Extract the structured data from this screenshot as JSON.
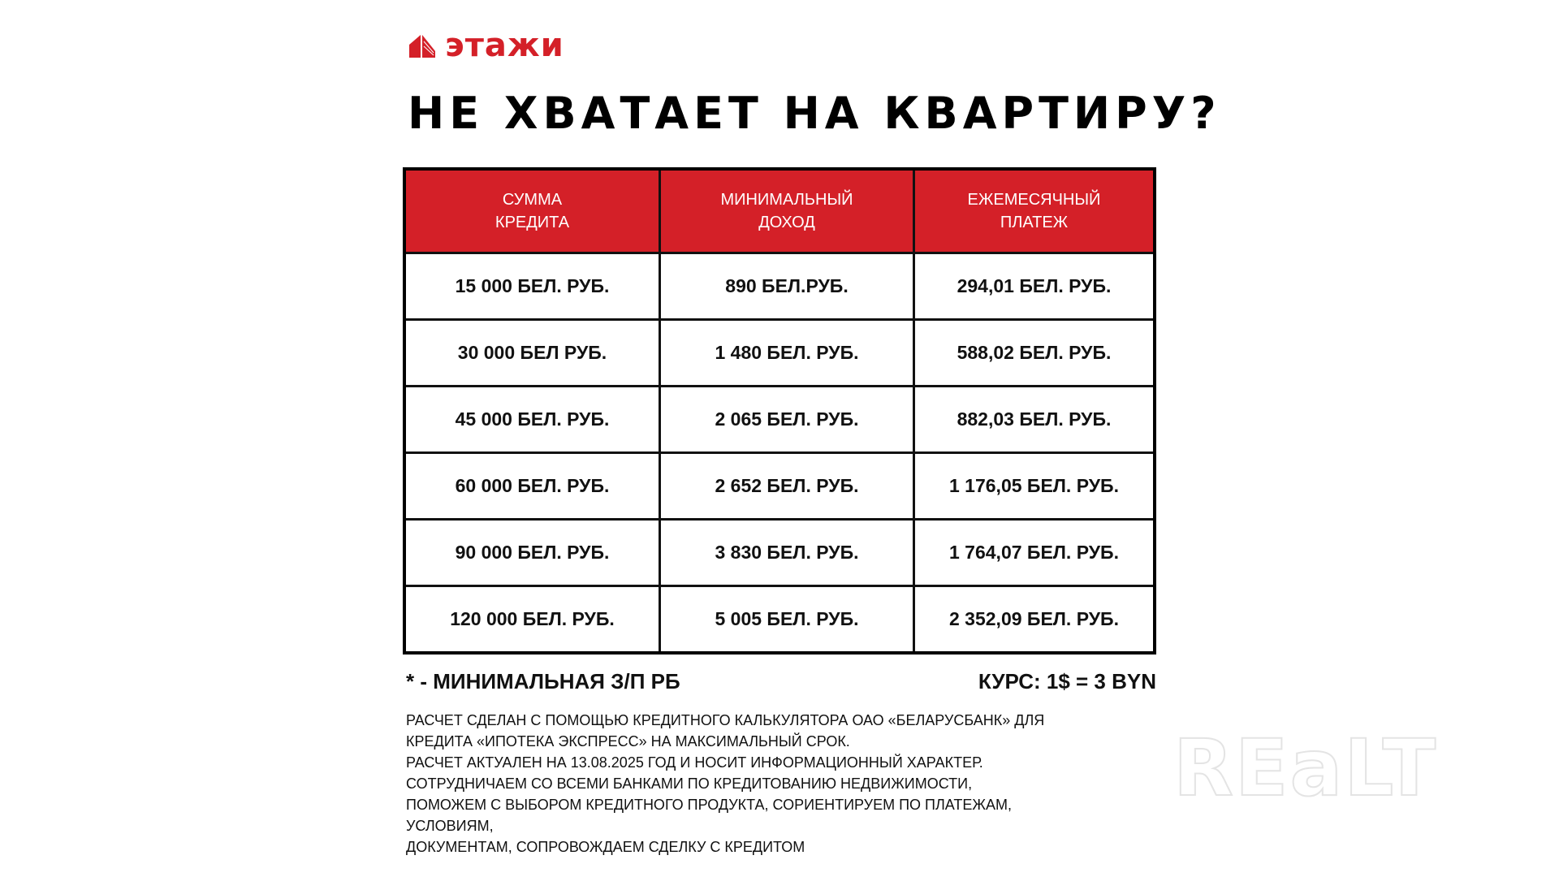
{
  "brand": {
    "logo_text": "этажи",
    "accent": "#d42028",
    "icon": "building-icon"
  },
  "title": "НЕ ХВАТАЕТ НА КВАРТИРУ?",
  "table": {
    "headers": [
      "СУММА\nКРЕДИТА",
      "МИНИМАЛЬНЫЙ\nДОХОД",
      "ЕЖЕМЕСЯЧНЫЙ\nПЛАТЕЖ"
    ],
    "header_lines": [
      [
        "СУММА",
        "КРЕДИТА"
      ],
      [
        "МИНИМАЛЬНЫЙ",
        "ДОХОД"
      ],
      [
        "ЕЖЕМЕСЯЧНЫЙ",
        "ПЛАТЕЖ"
      ]
    ],
    "rows": [
      [
        "15 000 БЕЛ. РУБ.",
        "890 БЕЛ.РУБ.",
        "294,01 БЕЛ. РУБ."
      ],
      [
        "30 000 БЕЛ РУБ.",
        "1 480 БЕЛ. РУБ.",
        "588,02 БЕЛ. РУБ."
      ],
      [
        "45 000 БЕЛ. РУБ.",
        "2 065 БЕЛ. РУБ.",
        "882,03 БЕЛ. РУБ."
      ],
      [
        "60 000 БЕЛ. РУБ.",
        "2 652 БЕЛ. РУБ.",
        "1 176,05 БЕЛ. РУБ."
      ],
      [
        "90 000 БЕЛ. РУБ.",
        "3 830 БЕЛ. РУБ.",
        "1 764,07 БЕЛ. РУБ."
      ],
      [
        "120 000 БЕЛ. РУБ.",
        "5 005 БЕЛ. РУБ.",
        "2 352,09 БЕЛ. РУБ."
      ]
    ]
  },
  "footnote": {
    "left": "* - МИНИМАЛЬНАЯ З/П РБ",
    "right": "КУРС: 1$ = 3 BYN"
  },
  "notes": [
    "РАСЧЕТ СДЕЛАН С ПОМОЩЬЮ КРЕДИТНОГО КАЛЬКУЛЯТОРА ОАО «БЕЛАРУСБАНК» ДЛЯ",
    "КРЕДИТА «ИПОТЕКА ЭКСПРЕСС» НА МАКСИМАЛЬНЫЙ СРОК.",
    "РАСЧЕТ АКТУАЛЕН НА 13.08.2025 ГОД И НОСИТ ИНФОРМАЦИОННЫЙ ХАРАКТЕР.",
    "СОТРУДНИЧАЕМ СО ВСЕМИ БАНКАМИ ПО КРЕДИТОВАНИЮ НЕДВИЖИМОСТИ,",
    "ПОМОЖЕМ С ВЫБОРОМ КРЕДИТНОГО ПРОДУКТА, СОРИЕНТИРУЕМ ПО ПЛАТЕЖАМ,",
    "УСЛОВИЯМ,",
    "ДОКУМЕНТАМ, СОПРОВОЖДАЕМ СДЕЛКУ С КРЕДИТОМ"
  ],
  "watermark": "REaLT"
}
